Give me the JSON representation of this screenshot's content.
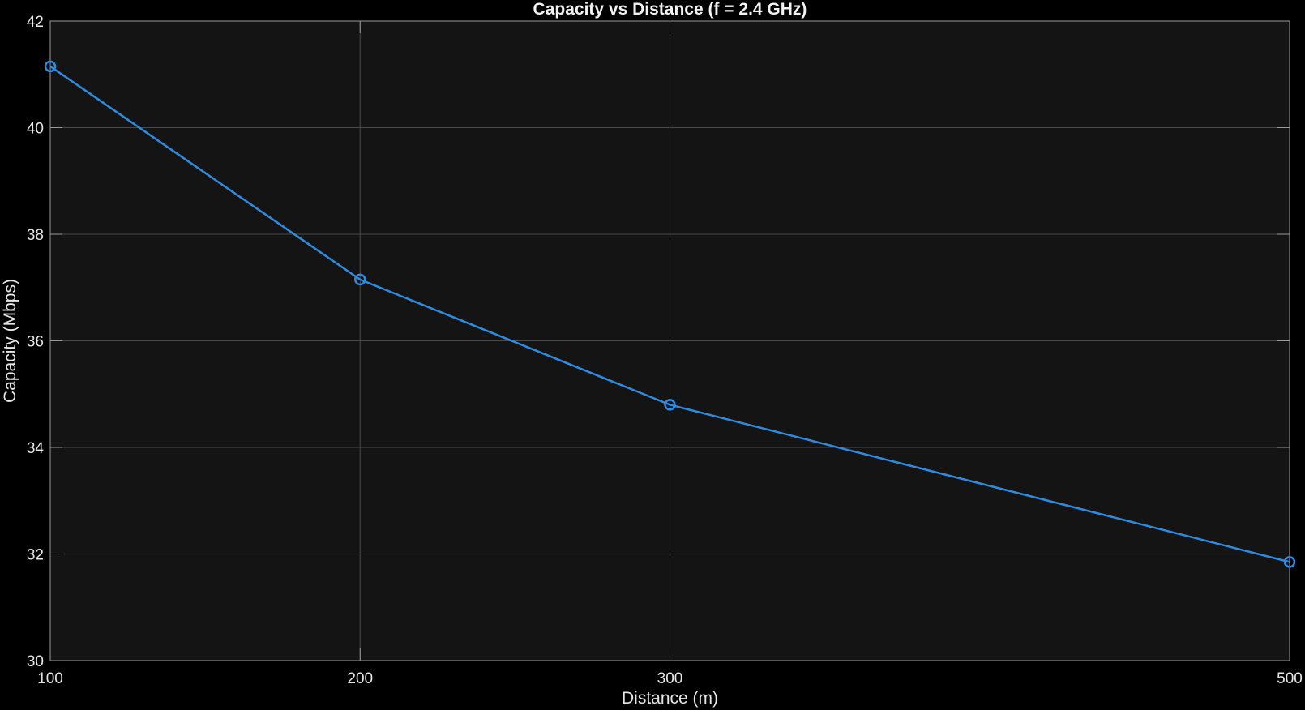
{
  "chart_data": {
    "type": "line",
    "title": "Capacity vs Distance (f = 2.4 GHz)",
    "xlabel": "Distance (m)",
    "ylabel": "Capacity (Mbps)",
    "xlim": [
      100,
      500
    ],
    "ylim": [
      30,
      42
    ],
    "x_ticks": [
      100,
      200,
      300,
      500
    ],
    "y_ticks": [
      30,
      32,
      34,
      36,
      38,
      40,
      42
    ],
    "grid": true,
    "marker": "circle",
    "series": [
      {
        "x": [
          100,
          200,
          300,
          500
        ],
        "values": [
          41.15,
          37.15,
          34.8,
          31.85
        ]
      }
    ],
    "colors": {
      "figure_background": "#000000",
      "axes_background": "#141414",
      "grid": "#4a4a4a",
      "axes_frame": "#9a9a9a",
      "text": "#e6e6e6",
      "series": "#2f8be0"
    }
  }
}
